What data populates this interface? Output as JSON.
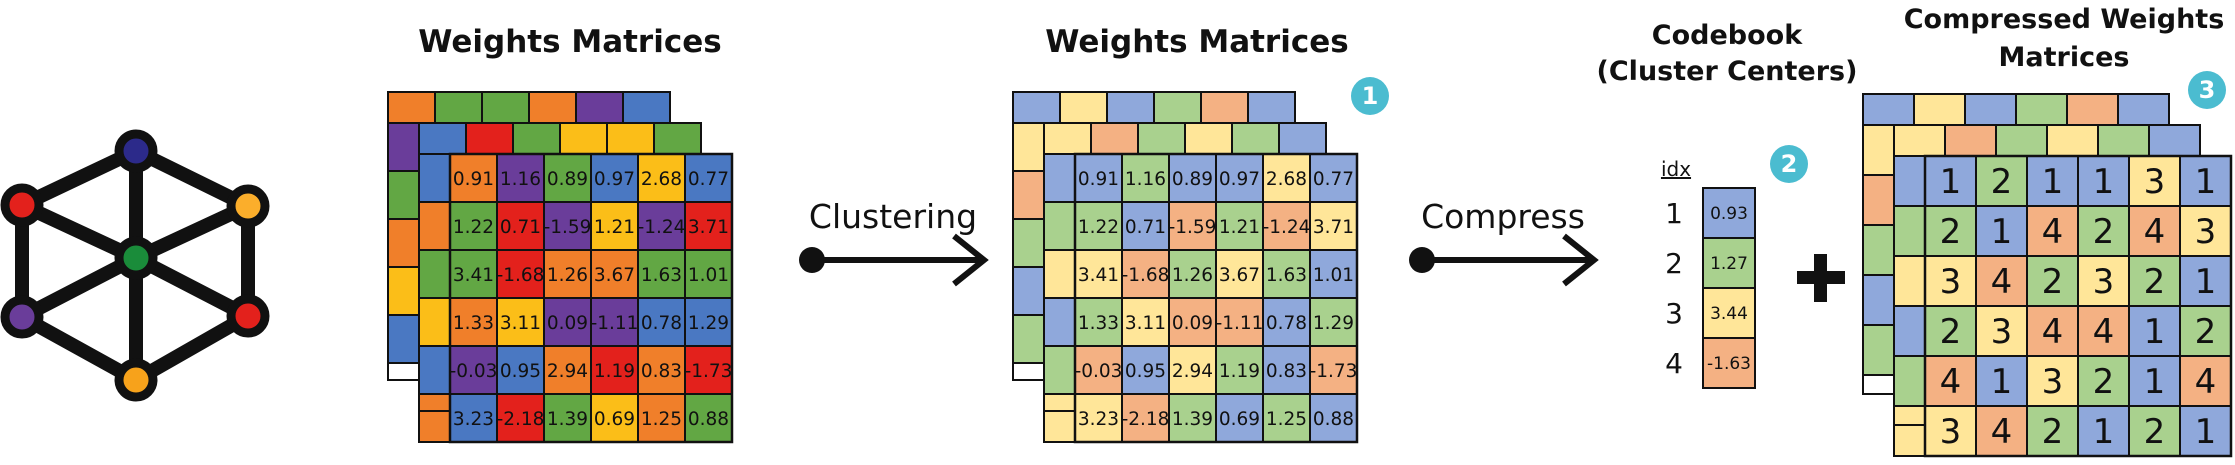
{
  "titles": {
    "weights_original": "Weights Matrices",
    "weights_clustered": "Weights Matrices",
    "codebook_line1": "Codebook",
    "codebook_line2": "(Cluster Centers)",
    "compressed_line1": "Compressed Weights",
    "compressed_line2": "Matrices"
  },
  "arrows": {
    "clustering": "Clustering",
    "compress": "Compress"
  },
  "steps": [
    "1",
    "2",
    "3"
  ],
  "plus": "+",
  "colors": {
    "orange": "#f07f2a",
    "green": "#62a744",
    "purple": "#6a3d9a",
    "blue": "#4a78c2",
    "red": "#e3211c",
    "yellow": "#fbbe18",
    "c1": "#8fa8db",
    "c2": "#a9d18e",
    "c3": "#ffe699",
    "c4": "#f4b183",
    "badge": "#4bbcd0"
  },
  "network": {
    "node_colors": [
      "#e3211c",
      "#2c2a8a",
      "#fbae2b",
      "#1a8c3a",
      "#6a3d9a",
      "#e3211c",
      "#f7a21b"
    ]
  },
  "weights": [
    [
      "0.91",
      "1.16",
      "0.89",
      "0.97",
      "2.68",
      "0.77"
    ],
    [
      "1.22",
      "0.71",
      "-1.59",
      "1.21",
      "-1.24",
      "3.71"
    ],
    [
      "3.41",
      "-1.68",
      "1.26",
      "3.67",
      "1.63",
      "1.01"
    ],
    [
      "1.33",
      "3.11",
      "0.09",
      "-1.11",
      "0.78",
      "1.29"
    ],
    [
      "-0.03",
      "0.95",
      "2.94",
      "1.19",
      "0.83",
      "-1.73"
    ],
    [
      "3.23",
      "-2.18",
      "1.39",
      "0.69",
      "1.25",
      "0.88"
    ]
  ],
  "original_colors": [
    [
      "orange",
      "purple",
      "green",
      "blue",
      "yellow",
      "blue"
    ],
    [
      "green",
      "red",
      "purple",
      "yellow",
      "purple",
      "red"
    ],
    [
      "green",
      "red",
      "orange",
      "orange",
      "green",
      "green"
    ],
    [
      "orange",
      "yellow",
      "purple",
      "purple",
      "blue",
      "blue"
    ],
    [
      "purple",
      "blue",
      "orange",
      "red",
      "orange",
      "red"
    ],
    [
      "blue",
      "red",
      "green",
      "yellow",
      "orange",
      "green"
    ]
  ],
  "original_back": {
    "top_back": [
      "orange",
      "green",
      "green",
      "orange",
      "purple",
      "blue"
    ],
    "top_mid": [
      "blue",
      "red",
      "green",
      "yellow",
      "yellow",
      "green"
    ],
    "left_back": [
      "purple",
      "green",
      "orange",
      "yellow",
      "blue"
    ],
    "left_mid": [
      "blue",
      "orange",
      "green",
      "yellow",
      "blue",
      "orange"
    ]
  },
  "clustered_back": {
    "top_back": [
      "c1",
      "c3",
      "c1",
      "c2",
      "c4",
      "c1"
    ],
    "top_mid": [
      "c3",
      "c4",
      "c2",
      "c3",
      "c2",
      "c1"
    ],
    "left_back": [
      "c3",
      "c4",
      "c2",
      "c1",
      "c2"
    ],
    "left_mid": [
      "c1",
      "c2",
      "c3",
      "c1",
      "c2",
      "c3"
    ]
  },
  "compressed": [
    [
      "1",
      "2",
      "1",
      "1",
      "3",
      "1"
    ],
    [
      "2",
      "1",
      "4",
      "2",
      "4",
      "3"
    ],
    [
      "3",
      "4",
      "2",
      "3",
      "2",
      "1"
    ],
    [
      "2",
      "3",
      "4",
      "4",
      "1",
      "2"
    ],
    [
      "4",
      "1",
      "3",
      "2",
      "1",
      "4"
    ],
    [
      "3",
      "4",
      "2",
      "1",
      "2",
      "1"
    ]
  ],
  "codebook": {
    "idx_label": "idx",
    "entries": [
      {
        "idx": "1",
        "value": "0.93",
        "color": "c1"
      },
      {
        "idx": "2",
        "value": "1.27",
        "color": "c2"
      },
      {
        "idx": "3",
        "value": "3.44",
        "color": "c3"
      },
      {
        "idx": "4",
        "value": "-1.63",
        "color": "c4"
      }
    ]
  }
}
